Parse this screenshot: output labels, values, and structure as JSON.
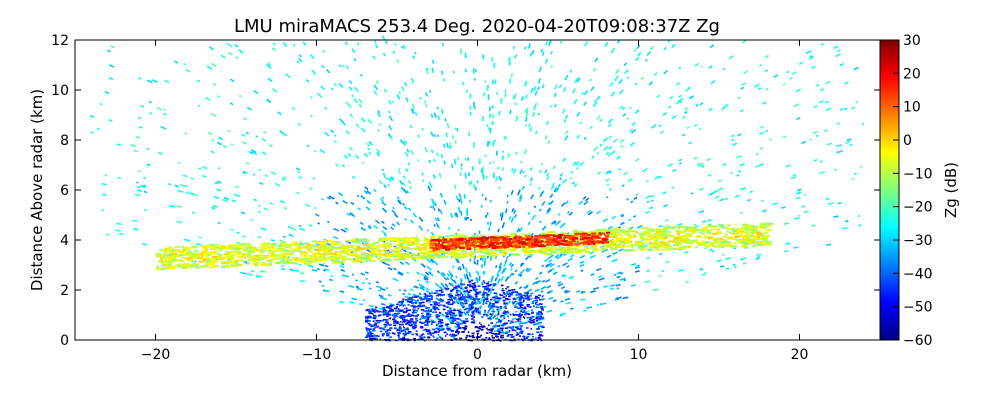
{
  "chart_data": {
    "type": "heatmap",
    "title": "LMU miraMACS 253.4 Deg. 2020-04-20T09:08:37Z  Zg",
    "xlabel": "Distance from radar (km)",
    "ylabel": "Distance Above radar  (km)",
    "xlim": [
      -25,
      25
    ],
    "ylim": [
      0,
      12
    ],
    "xticks": [
      -20,
      -10,
      0,
      10,
      20
    ],
    "yticks": [
      0,
      2,
      4,
      6,
      8,
      10,
      12
    ],
    "colorbar": {
      "label": "Zg (dB)",
      "range": [
        -60,
        30
      ],
      "ticks": [
        30,
        20,
        10,
        0,
        -10,
        -20,
        -30,
        -40,
        -50,
        -60
      ],
      "colormap": "jet"
    },
    "features": [
      {
        "name": "weak background echo (sector scan)",
        "zg_db": -25,
        "x_range": [
          -24,
          24
        ],
        "y_range": [
          0,
          12
        ]
      },
      {
        "name": "melting layer band",
        "zg_db": -5,
        "x_range": [
          -20,
          18
        ],
        "y_range": [
          2.8,
          4.3
        ]
      },
      {
        "name": "bright band core",
        "zg_db": 15,
        "x_range": [
          -3,
          8
        ],
        "y_range": [
          3.5,
          4.2
        ]
      },
      {
        "name": "near-radar low echo",
        "zg_db": -45,
        "x_range": [
          -7,
          4
        ],
        "y_range": [
          0,
          2.5
        ]
      }
    ]
  }
}
